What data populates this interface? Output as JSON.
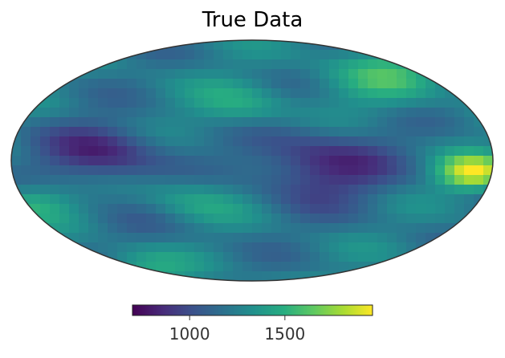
{
  "chart_data": {
    "type": "heatmap",
    "projection": "mollweide",
    "title": "True Data",
    "colormap": "viridis",
    "colorbar": {
      "orientation": "horizontal",
      "placement": "bottom",
      "vmin": 700,
      "vmax": 1960,
      "ticks": [
        1000,
        1500
      ],
      "tick_labels": [
        "1000",
        "1500"
      ]
    },
    "colors": {
      "low": "#440154",
      "mid": "#21918c",
      "high": "#fde725",
      "outline": "#333333"
    }
  }
}
